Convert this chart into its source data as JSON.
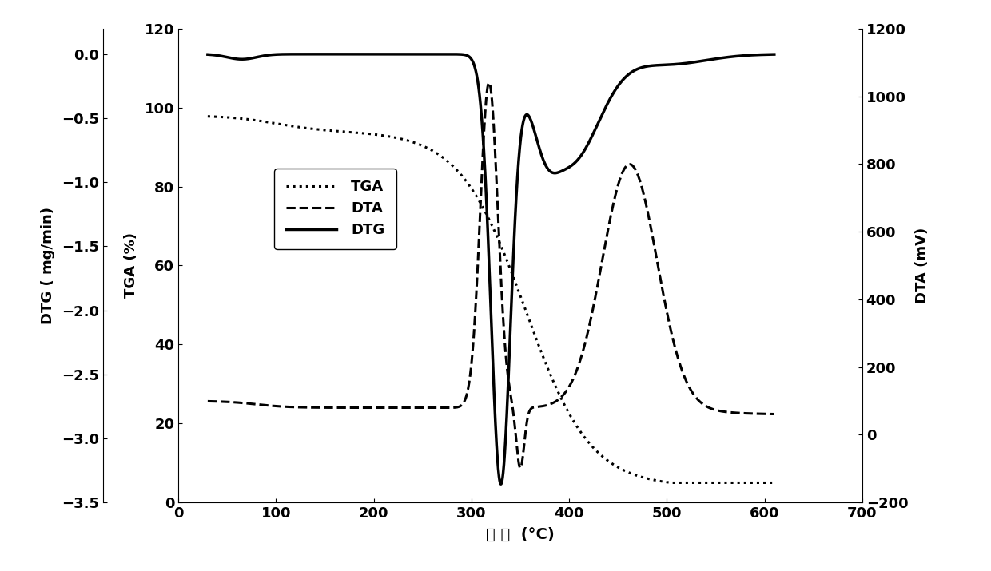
{
  "xlabel": "温 度  (°C)",
  "ylabel_left": "DTG ( mg/min)",
  "ylabel_mid": "TGA (%)",
  "ylabel_right": "DTA (mV)",
  "xlim": [
    0,
    700
  ],
  "ylim_left": [
    -3.5,
    0.2
  ],
  "ylim_mid": [
    0,
    120
  ],
  "ylim_right": [
    -200,
    1200
  ],
  "xticks": [
    0,
    100,
    200,
    300,
    400,
    500,
    600,
    700
  ],
  "yticks_left": [
    0.0,
    -0.5,
    -1.0,
    -1.5,
    -2.0,
    -2.5,
    -3.0,
    -3.5
  ],
  "yticks_mid": [
    0,
    20,
    40,
    60,
    80,
    100,
    120
  ],
  "yticks_right": [
    -200,
    0,
    200,
    400,
    600,
    800,
    1000,
    1200
  ],
  "legend_labels": [
    "TGA",
    "DTA",
    "DTG"
  ],
  "line_color": "#000000",
  "background_color": "#ffffff",
  "font_size": 13,
  "axis_font_size": 13
}
